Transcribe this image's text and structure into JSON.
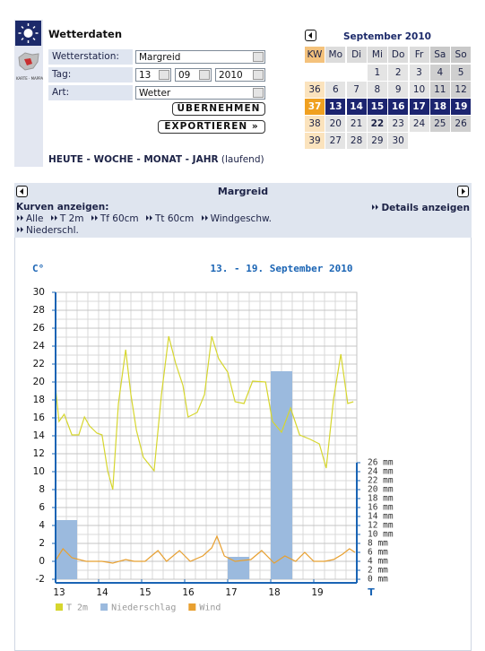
{
  "header": {
    "title": "Wetterdaten",
    "map_caption": "KARTE · MAPPA"
  },
  "form": {
    "station_label": "Wetterstation:",
    "station": "Margreid",
    "day_label": "Tag:",
    "day": "13",
    "month": "09",
    "year": "2010",
    "type_label": "Art:",
    "type": "Wetter",
    "apply": "ÜBERNEHMEN",
    "export": "EXPORTIEREN »"
  },
  "periods": {
    "links": [
      "HEUTE",
      "WOCHE",
      "MONAT",
      "JAHR"
    ],
    "separator": "-",
    "note": "(laufend)"
  },
  "calendar": {
    "title": "September 2010",
    "headers": [
      "KW",
      "Mo",
      "Di",
      "Mi",
      "Do",
      "Fr",
      "Sa",
      "So"
    ],
    "rows": [
      [
        null,
        null,
        null,
        1,
        2,
        3,
        4,
        5
      ],
      [
        36,
        6,
        7,
        8,
        9,
        10,
        11,
        12
      ],
      [
        37,
        13,
        14,
        15,
        16,
        17,
        18,
        19
      ],
      [
        38,
        20,
        21,
        22,
        23,
        24,
        25,
        26
      ],
      [
        39,
        27,
        28,
        29,
        30,
        null,
        null,
        null
      ]
    ],
    "selected_week": 37,
    "today": 22
  },
  "station_bar": {
    "title": "Margreid",
    "curves_label": "Kurven anzeigen:",
    "curves": [
      "Alle",
      "T 2m",
      "Tf 60cm",
      "Tt 60cm",
      "Windgeschw.",
      "Niederschl."
    ],
    "details": "Details anzeigen"
  },
  "chart_data": {
    "type": "line",
    "title": "13. - 19. September 2010",
    "y_label": "C°",
    "x_label": "T",
    "xlim": [
      13,
      20
    ],
    "xticks": [
      13,
      14,
      15,
      16,
      17,
      18,
      19
    ],
    "ylim": [
      -2,
      30
    ],
    "yticks": [
      -2,
      0,
      2,
      4,
      6,
      8,
      10,
      12,
      14,
      16,
      18,
      20,
      22,
      24,
      26,
      28,
      30
    ],
    "y2lim": [
      0,
      64
    ],
    "y2ticks": [
      {
        "value": 0,
        "label": "0 mm"
      },
      {
        "value": 2,
        "label": "2 mm"
      },
      {
        "value": 4,
        "label": "4 mm"
      },
      {
        "value": 6,
        "label": "6 mm"
      },
      {
        "value": 8,
        "label": "8 mm"
      },
      {
        "value": 10,
        "label": "10 mm"
      },
      {
        "value": 12,
        "label": "12 mm"
      },
      {
        "value": 14,
        "label": "14 mm"
      },
      {
        "value": 16,
        "label": "16 mm"
      },
      {
        "value": 18,
        "label": "18 mm"
      },
      {
        "value": 20,
        "label": "20 mm"
      },
      {
        "value": 22,
        "label": "22 mm"
      },
      {
        "value": 24,
        "label": "24 mm"
      },
      {
        "value": 26,
        "label": "26 mm"
      }
    ],
    "grid": true,
    "series": [
      {
        "name": "T 2m",
        "color": "#d6d62e",
        "type": "line",
        "x": [
          13.0,
          13.08,
          13.2,
          13.38,
          13.54,
          13.67,
          13.79,
          13.96,
          14.08,
          14.21,
          14.33,
          14.46,
          14.63,
          14.75,
          14.88,
          15.04,
          15.29,
          15.46,
          15.63,
          15.79,
          15.96,
          16.08,
          16.29,
          16.46,
          16.63,
          16.79,
          17.0,
          17.17,
          17.38,
          17.58,
          17.88,
          18.04,
          18.25,
          18.46,
          18.67,
          18.92,
          19.13,
          19.29,
          19.46,
          19.63,
          19.79,
          19.92
        ],
        "values": [
          19.4,
          15.6,
          16.4,
          14.1,
          14.1,
          16.1,
          15.1,
          14.3,
          14.1,
          10.1,
          8.0,
          17.6,
          23.6,
          18.6,
          14.6,
          11.6,
          10.1,
          18.6,
          25.1,
          22.1,
          19.6,
          16.1,
          16.6,
          18.6,
          25.1,
          22.6,
          21.1,
          17.8,
          17.6,
          20.1,
          20.0,
          15.6,
          14.4,
          17.1,
          14.1,
          13.6,
          13.1,
          10.4,
          18.1,
          23.1,
          17.6,
          17.8
        ]
      },
      {
        "name": "Niederschlag",
        "color": "#9bbade",
        "type": "bar",
        "axis": "y2",
        "bar_width": 0.5,
        "x": [
          13.25,
          17.25,
          18.25
        ],
        "values": [
          13.2,
          5.0,
          46.4
        ]
      },
      {
        "name": "Wind",
        "color": "#e8a030",
        "type": "line",
        "x": [
          13.0,
          13.17,
          13.38,
          13.71,
          14.08,
          14.33,
          14.63,
          14.83,
          15.08,
          15.38,
          15.58,
          15.88,
          16.13,
          16.42,
          16.63,
          16.75,
          16.92,
          17.17,
          17.54,
          17.79,
          18.08,
          18.33,
          18.58,
          18.79,
          19.0,
          19.25,
          19.46,
          19.67,
          19.83,
          19.96
        ],
        "values": [
          0.1,
          1.4,
          0.4,
          0.0,
          0.0,
          -0.2,
          0.2,
          0.0,
          0.0,
          1.2,
          0.0,
          1.2,
          0.0,
          0.6,
          1.5,
          2.8,
          0.6,
          0.0,
          0.2,
          1.2,
          -0.2,
          0.6,
          0.0,
          1.0,
          0.0,
          0.0,
          0.2,
          0.8,
          1.4,
          1.0
        ]
      }
    ]
  }
}
